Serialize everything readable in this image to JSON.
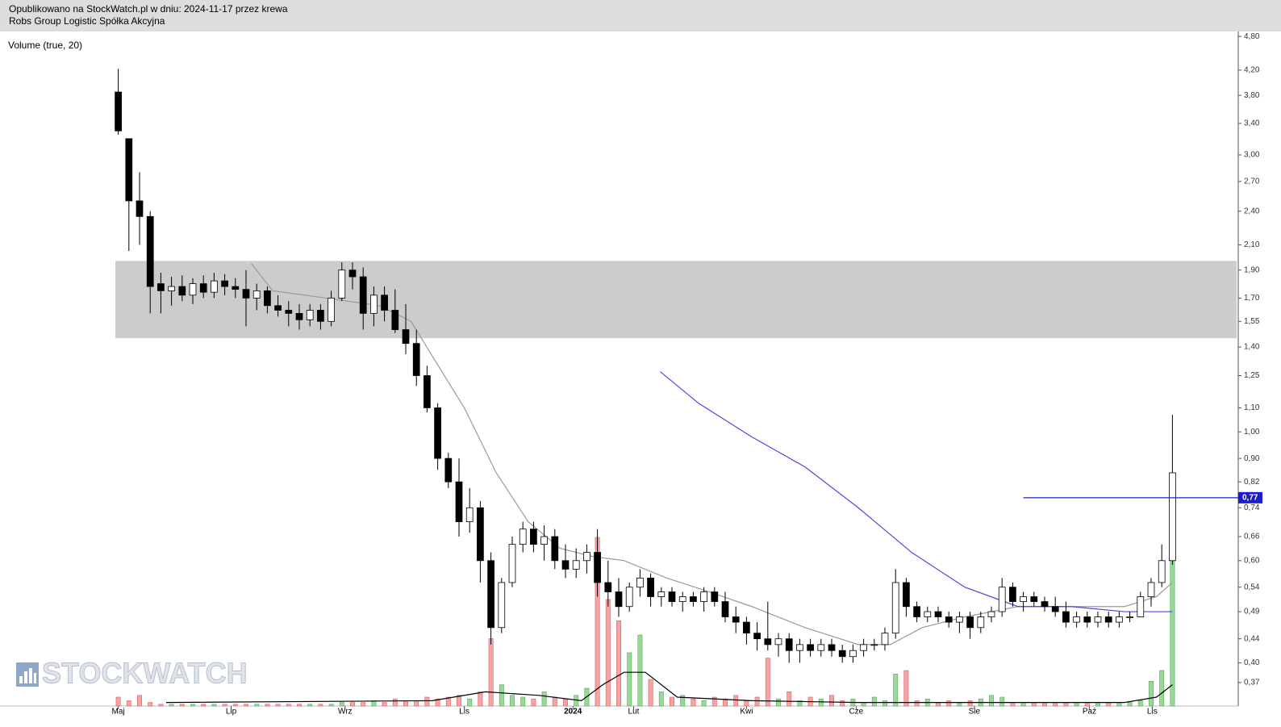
{
  "header": {
    "line1": "Opublikowano na StockWatch.pl w dniu: 2024-11-17 przez krewa",
    "line2": "Robs Group Logistic Spółka Akcyjna"
  },
  "chart_data": {
    "type": "candlestick",
    "indicator_label": "Volume (true, 20)",
    "watermark": "STOCKWATCH",
    "log_scale": true,
    "ylim": [
      0.337,
      4.88
    ],
    "yticks": [
      {
        "value": 4.8,
        "label": "4,80"
      },
      {
        "value": 4.2,
        "label": "4,20"
      },
      {
        "value": 3.8,
        "label": "3,80"
      },
      {
        "value": 3.4,
        "label": "3,40"
      },
      {
        "value": 3.0,
        "label": "3,00"
      },
      {
        "value": 2.7,
        "label": "2,70"
      },
      {
        "value": 2.4,
        "label": "2,40"
      },
      {
        "value": 2.1,
        "label": "2,10"
      },
      {
        "value": 1.9,
        "label": "1,90"
      },
      {
        "value": 1.7,
        "label": "1,70"
      },
      {
        "value": 1.55,
        "label": "1,55"
      },
      {
        "value": 1.4,
        "label": "1,40"
      },
      {
        "value": 1.25,
        "label": "1,25"
      },
      {
        "value": 1.1,
        "label": "1,10"
      },
      {
        "value": 1.0,
        "label": "1,00"
      },
      {
        "value": 0.9,
        "label": "0,90"
      },
      {
        "value": 0.82,
        "label": "0,82"
      },
      {
        "value": 0.74,
        "label": "0,74"
      },
      {
        "value": 0.66,
        "label": "0,66"
      },
      {
        "value": 0.6,
        "label": "0,60"
      },
      {
        "value": 0.54,
        "label": "0,54"
      },
      {
        "value": 0.49,
        "label": "0,49"
      },
      {
        "value": 0.44,
        "label": "0,44"
      },
      {
        "value": 0.4,
        "label": "0,40"
      },
      {
        "value": 0.37,
        "label": "0,37"
      }
    ],
    "xlim": [
      0,
      100
    ],
    "xticks": [
      {
        "value": 0.5,
        "label": "Maj"
      },
      {
        "value": 11.1,
        "label": "Lip"
      },
      {
        "value": 21.8,
        "label": "Wrz"
      },
      {
        "value": 33,
        "label": "Lis"
      },
      {
        "value": 43.2,
        "label": "2024",
        "bold": true
      },
      {
        "value": 48.9,
        "label": "Lut"
      },
      {
        "value": 59.5,
        "label": "Kwi"
      },
      {
        "value": 69.8,
        "label": "Cze"
      },
      {
        "value": 80.9,
        "label": "Sie"
      },
      {
        "value": 91.7,
        "label": "Paź"
      },
      {
        "value": 97.6,
        "label": "Lis"
      }
    ],
    "open": [
      3.85,
      3.2,
      2.5,
      2.35,
      1.8,
      1.75,
      1.78,
      1.72,
      1.8,
      1.74,
      1.82,
      1.78,
      1.76,
      1.7,
      1.75,
      1.65,
      1.62,
      1.6,
      1.56,
      1.62,
      1.55,
      1.7,
      1.9,
      1.85,
      1.6,
      1.72,
      1.62,
      1.5,
      1.42,
      1.25,
      1.1,
      0.9,
      0.82,
      0.7,
      0.74,
      0.6,
      0.46,
      0.55,
      0.64,
      0.68,
      0.64,
      0.66,
      0.6,
      0.58,
      0.6,
      0.62,
      0.55,
      0.53,
      0.5,
      0.54,
      0.56,
      0.52,
      0.53,
      0.51,
      0.52,
      0.51,
      0.53,
      0.51,
      0.48,
      0.47,
      0.45,
      0.44,
      0.43,
      0.44,
      0.42,
      0.43,
      0.42,
      0.43,
      0.42,
      0.41,
      0.42,
      0.43,
      0.43,
      0.45,
      0.55,
      0.5,
      0.48,
      0.49,
      0.48,
      0.47,
      0.48,
      0.46,
      0.48,
      0.49,
      0.54,
      0.51,
      0.52,
      0.51,
      0.5,
      0.49,
      0.47,
      0.48,
      0.47,
      0.48,
      0.47,
      0.48,
      0.48,
      0.52,
      0.55,
      0.6
    ],
    "high": [
      4.22,
      3.2,
      2.8,
      2.4,
      1.88,
      1.85,
      1.86,
      1.84,
      1.86,
      1.88,
      1.87,
      1.84,
      1.9,
      1.8,
      1.78,
      1.72,
      1.68,
      1.66,
      1.66,
      1.66,
      1.75,
      1.96,
      1.96,
      1.92,
      1.78,
      1.78,
      1.76,
      1.66,
      1.5,
      1.3,
      1.12,
      0.92,
      0.9,
      0.8,
      0.76,
      0.62,
      0.56,
      0.66,
      0.7,
      0.7,
      0.69,
      0.68,
      0.64,
      0.63,
      0.64,
      0.68,
      0.6,
      0.56,
      0.55,
      0.58,
      0.57,
      0.54,
      0.54,
      0.53,
      0.53,
      0.54,
      0.54,
      0.53,
      0.5,
      0.48,
      0.47,
      0.51,
      0.45,
      0.45,
      0.44,
      0.44,
      0.44,
      0.44,
      0.43,
      0.43,
      0.44,
      0.44,
      0.46,
      0.58,
      0.56,
      0.51,
      0.5,
      0.5,
      0.49,
      0.49,
      0.49,
      0.49,
      0.5,
      0.56,
      0.55,
      0.53,
      0.53,
      0.52,
      0.52,
      0.51,
      0.49,
      0.49,
      0.49,
      0.49,
      0.49,
      0.49,
      0.53,
      0.56,
      0.64,
      1.07
    ],
    "low": [
      3.25,
      2.05,
      2.1,
      1.6,
      1.6,
      1.65,
      1.68,
      1.66,
      1.7,
      1.7,
      1.72,
      1.7,
      1.52,
      1.62,
      1.6,
      1.58,
      1.52,
      1.5,
      1.52,
      1.5,
      1.52,
      1.68,
      1.76,
      1.5,
      1.52,
      1.55,
      1.48,
      1.36,
      1.2,
      1.08,
      0.86,
      0.8,
      0.66,
      0.67,
      0.55,
      0.43,
      0.45,
      0.54,
      0.62,
      0.62,
      0.6,
      0.58,
      0.56,
      0.56,
      0.57,
      0.52,
      0.5,
      0.48,
      0.49,
      0.52,
      0.5,
      0.5,
      0.5,
      0.49,
      0.5,
      0.49,
      0.5,
      0.47,
      0.45,
      0.43,
      0.42,
      0.42,
      0.41,
      0.4,
      0.4,
      0.41,
      0.41,
      0.41,
      0.4,
      0.4,
      0.41,
      0.42,
      0.42,
      0.44,
      0.48,
      0.47,
      0.47,
      0.47,
      0.46,
      0.45,
      0.44,
      0.45,
      0.47,
      0.48,
      0.5,
      0.49,
      0.5,
      0.49,
      0.48,
      0.46,
      0.46,
      0.46,
      0.46,
      0.46,
      0.46,
      0.47,
      0.48,
      0.5,
      0.54,
      0.59
    ],
    "close": [
      3.3,
      2.5,
      2.35,
      1.78,
      1.75,
      1.78,
      1.72,
      1.8,
      1.74,
      1.82,
      1.78,
      1.76,
      1.7,
      1.75,
      1.65,
      1.62,
      1.6,
      1.56,
      1.62,
      1.55,
      1.7,
      1.9,
      1.85,
      1.6,
      1.72,
      1.62,
      1.5,
      1.42,
      1.25,
      1.1,
      0.9,
      0.82,
      0.7,
      0.74,
      0.6,
      0.46,
      0.55,
      0.64,
      0.68,
      0.64,
      0.66,
      0.6,
      0.58,
      0.6,
      0.62,
      0.55,
      0.53,
      0.5,
      0.54,
      0.56,
      0.52,
      0.53,
      0.51,
      0.52,
      0.51,
      0.53,
      0.51,
      0.48,
      0.47,
      0.45,
      0.44,
      0.43,
      0.44,
      0.42,
      0.43,
      0.42,
      0.43,
      0.42,
      0.41,
      0.42,
      0.43,
      0.43,
      0.45,
      0.55,
      0.5,
      0.48,
      0.49,
      0.48,
      0.47,
      0.48,
      0.46,
      0.48,
      0.49,
      0.54,
      0.51,
      0.52,
      0.51,
      0.5,
      0.49,
      0.47,
      0.48,
      0.47,
      0.48,
      0.47,
      0.48,
      0.48,
      0.52,
      0.55,
      0.6,
      0.85
    ],
    "volume": [
      5,
      3,
      6,
      2,
      1,
      1,
      1,
      1,
      1,
      1,
      1,
      1,
      1,
      1,
      1,
      1,
      1,
      1,
      1,
      1,
      1,
      2,
      2,
      2,
      3,
      2,
      4,
      3,
      3,
      5,
      4,
      5,
      6,
      4,
      8,
      38,
      12,
      6,
      5,
      4,
      8,
      5,
      4,
      6,
      10,
      95,
      60,
      48,
      30,
      40,
      15,
      8,
      5,
      6,
      4,
      3,
      5,
      4,
      6,
      3,
      5,
      27,
      4,
      8,
      3,
      5,
      4,
      6,
      3,
      4,
      2,
      5,
      3,
      18,
      20,
      3,
      4,
      2,
      3,
      2,
      3,
      4,
      6,
      5,
      2,
      2,
      2,
      2,
      2,
      2,
      2,
      2,
      2,
      2,
      2,
      2,
      3,
      14,
      20,
      87
    ],
    "volume_lim": [
      0,
      100
    ],
    "up_color": "#ffffff",
    "down_color": "#000000",
    "volume_up_color": "#9ad89a",
    "volume_down_color": "#f4a4a4",
    "lines": [
      {
        "color": "#9a9a9a",
        "axis": "price",
        "x": [
          13,
          15,
          20,
          25,
          28,
          30,
          33,
          36,
          39,
          42,
          45,
          48,
          52,
          56,
          60,
          65,
          70,
          73,
          76,
          80,
          85,
          90,
          95,
          98,
          99.5
        ],
        "values": [
          1.95,
          1.75,
          1.7,
          1.65,
          1.55,
          1.35,
          1.1,
          0.85,
          0.7,
          0.63,
          0.61,
          0.6,
          0.56,
          0.53,
          0.5,
          0.46,
          0.43,
          0.43,
          0.46,
          0.48,
          0.5,
          0.5,
          0.5,
          0.52,
          0.55
        ]
      },
      {
        "color": "#4848e0",
        "axis": "price",
        "x": [
          51.4,
          55,
          60,
          65,
          70,
          75,
          80,
          85,
          90,
          95,
          99.5
        ],
        "values": [
          1.27,
          1.12,
          0.98,
          0.87,
          0.74,
          0.62,
          0.54,
          0.5,
          0.5,
          0.49,
          0.49
        ]
      },
      {
        "color": "#000000",
        "axis": "volume",
        "x": [
          5,
          30,
          35,
          40,
          44,
          46,
          48,
          50,
          53,
          60,
          70,
          80,
          95,
          98,
          99.5
        ],
        "values": [
          2,
          3,
          8,
          6,
          3,
          12,
          19,
          19,
          5,
          3,
          2,
          2,
          2,
          5,
          12
        ]
      }
    ],
    "zone": {
      "from": 1.45,
      "to": 1.97,
      "color": "#cccccc"
    },
    "hline": {
      "value": 0.77,
      "value_label": "0,77",
      "x_from": 85.5,
      "color": "#1c1cc8"
    }
  }
}
